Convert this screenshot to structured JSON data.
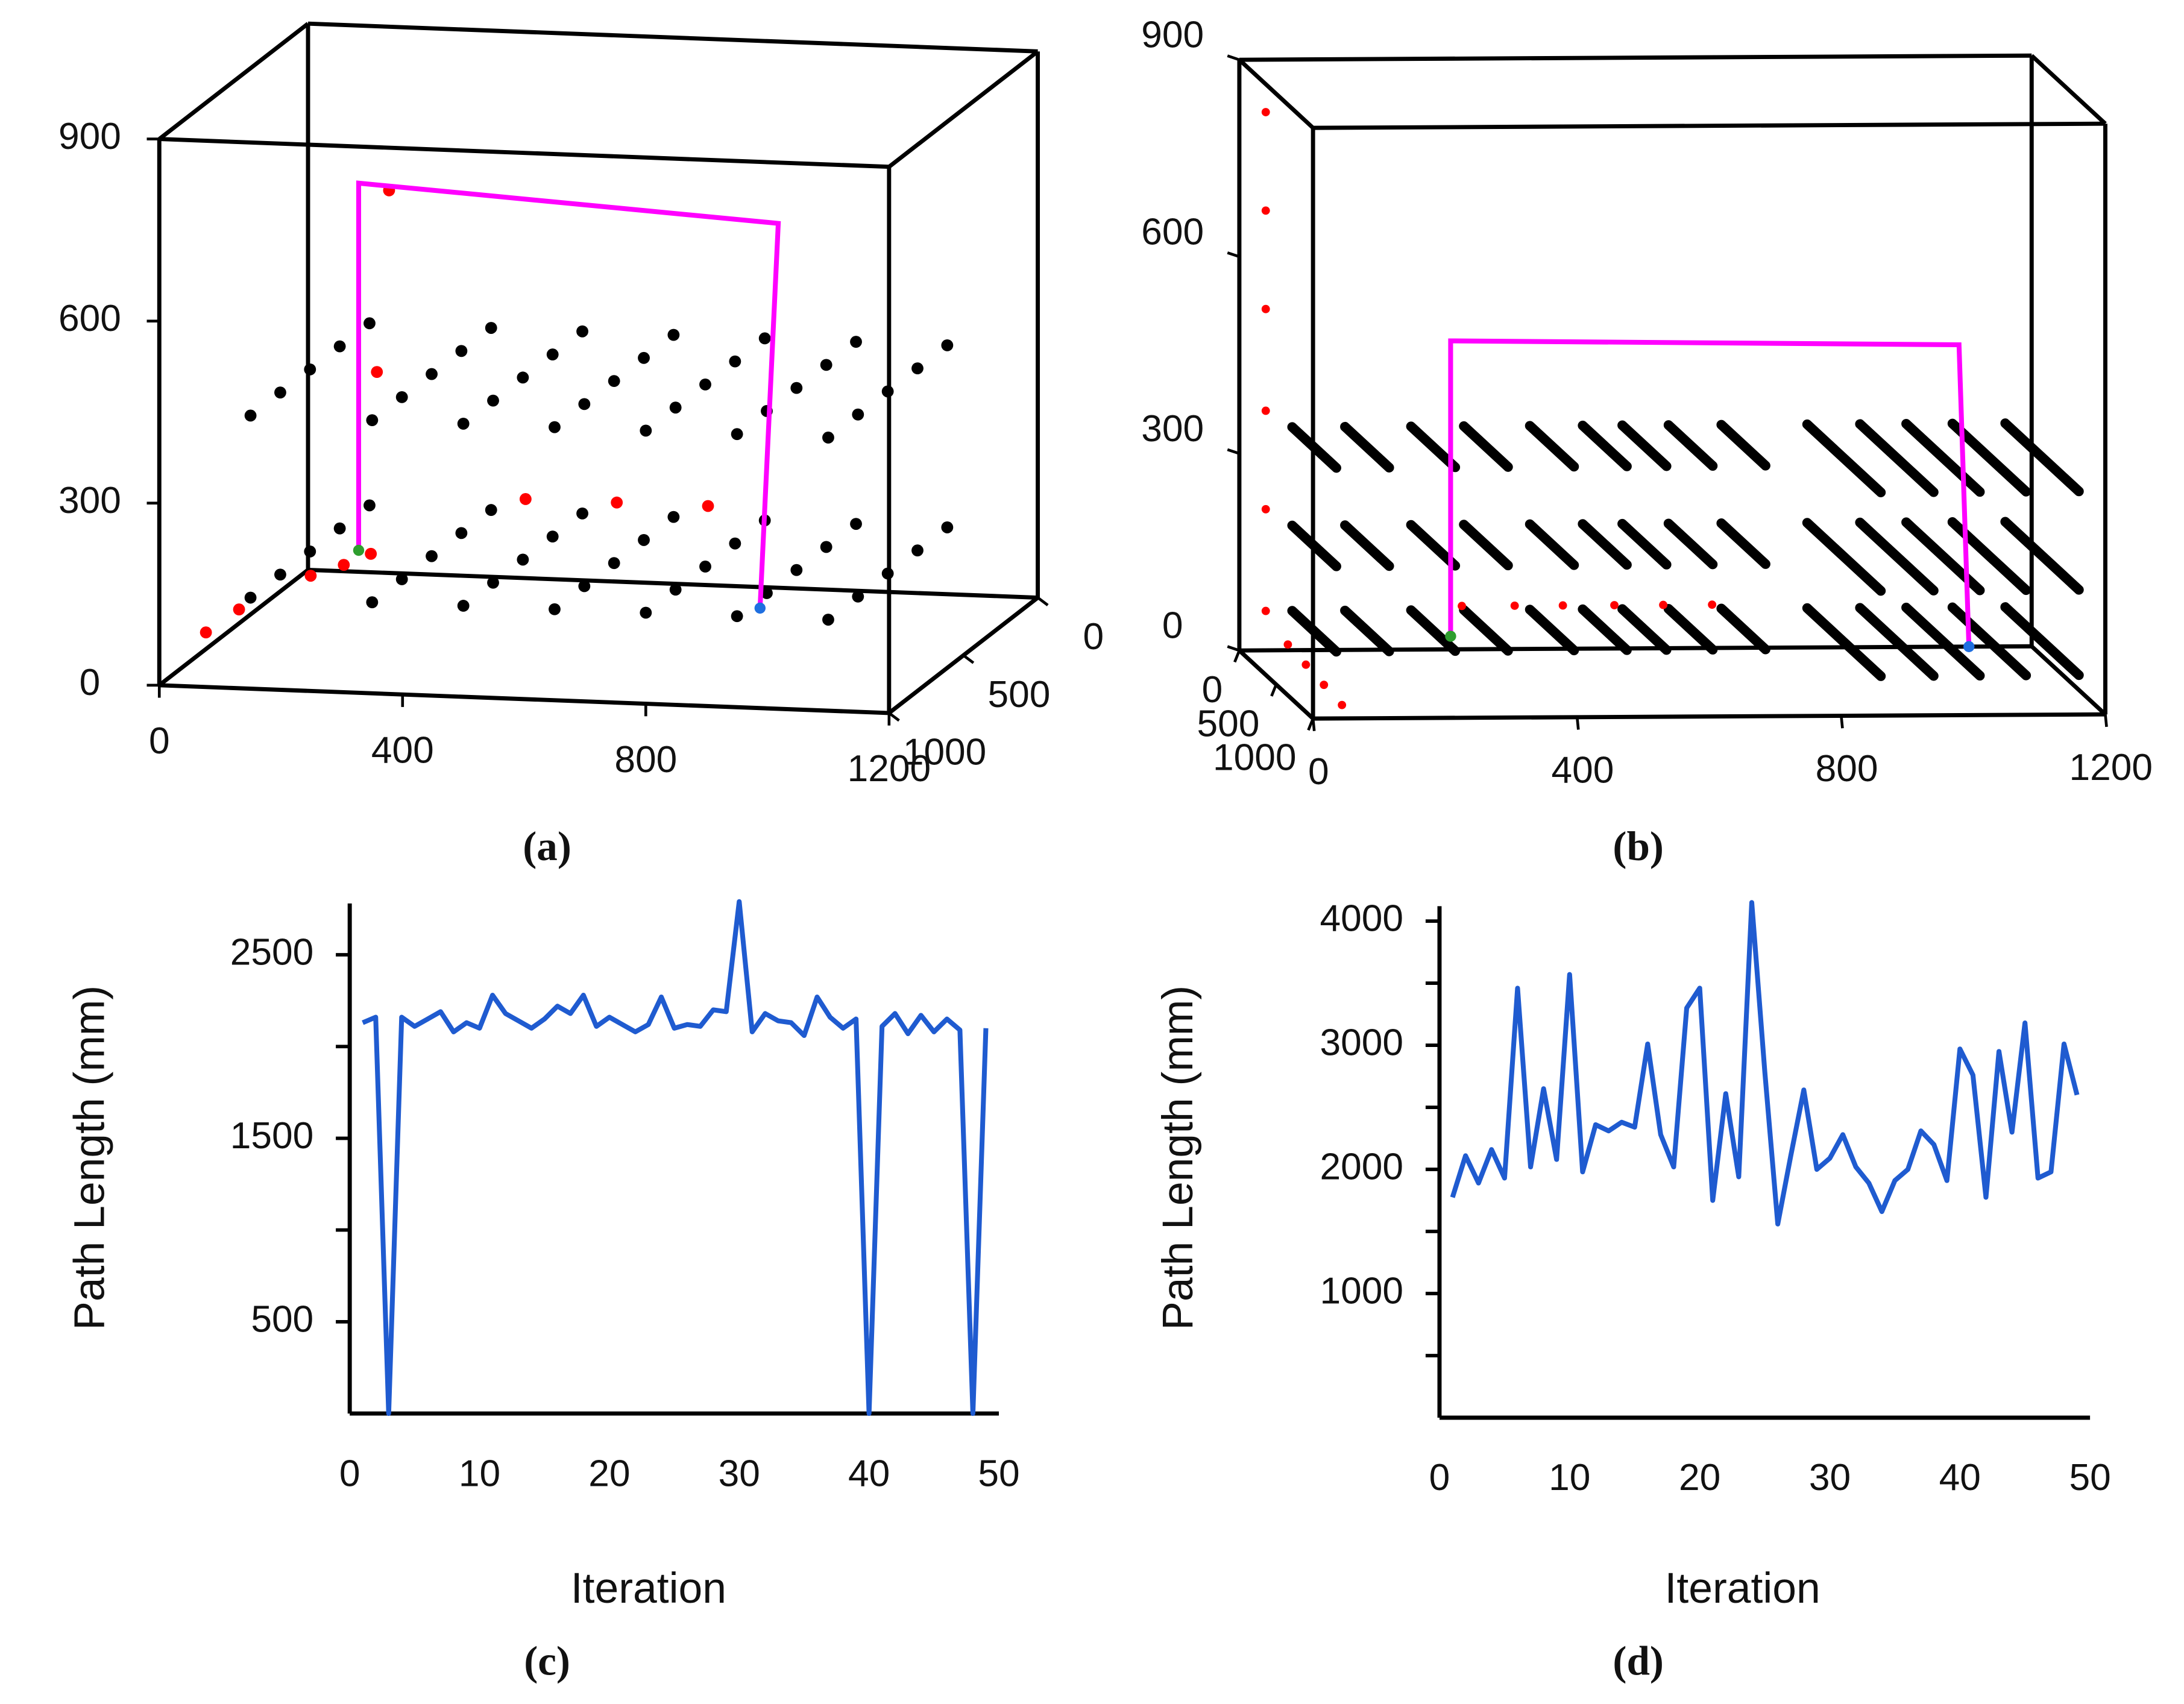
{
  "chart_data": [
    {
      "type": "scatter3d",
      "label": "(a)",
      "xlim": [
        0,
        1200
      ],
      "ylim": [
        0,
        1000
      ],
      "zlim": [
        0,
        900
      ],
      "xticks": [
        0,
        400,
        800,
        1200
      ],
      "yticks": [
        0,
        500,
        1000
      ],
      "zticks": [
        0,
        300,
        600,
        900
      ],
      "obstacles": {
        "color": "#000000",
        "x": [
          150,
          150,
          150,
          150,
          150,
          350,
          350,
          350,
          350,
          350,
          500,
          500,
          500,
          500,
          500,
          650,
          650,
          650,
          650,
          650,
          800,
          800,
          800,
          800,
          800,
          950,
          950,
          950,
          950,
          950,
          1100,
          1100,
          1100,
          1100,
          1100,
          150,
          150,
          150,
          150,
          150,
          350,
          350,
          350,
          350,
          350,
          500,
          500,
          500,
          500,
          500,
          650,
          650,
          650,
          650,
          650,
          800,
          800,
          800,
          800,
          800,
          950,
          950,
          950,
          950,
          950,
          1100,
          1100,
          1100,
          1100,
          1100
        ],
        "y": [
          200,
          400,
          600,
          800,
          1000,
          200,
          400,
          600,
          800,
          1000,
          200,
          400,
          600,
          800,
          1000,
          200,
          400,
          600,
          800,
          1000,
          200,
          400,
          600,
          800,
          1000,
          200,
          400,
          600,
          800,
          1000,
          200,
          400,
          600,
          800,
          1000,
          200,
          400,
          600,
          800,
          1000,
          200,
          400,
          600,
          800,
          1000,
          200,
          400,
          600,
          800,
          1000,
          200,
          400,
          600,
          800,
          1000,
          200,
          400,
          600,
          800,
          1000,
          200,
          400,
          600,
          800,
          1000,
          200,
          400,
          600,
          800,
          1000
        ],
        "z": [
          150,
          150,
          150,
          150,
          150,
          150,
          150,
          150,
          150,
          150,
          150,
          150,
          150,
          150,
          150,
          150,
          150,
          150,
          150,
          150,
          150,
          150,
          150,
          150,
          150,
          150,
          150,
          150,
          150,
          150,
          150,
          150,
          150,
          150,
          150,
          450,
          450,
          450,
          450,
          450,
          450,
          450,
          450,
          450,
          450,
          450,
          450,
          450,
          450,
          450,
          450,
          450,
          450,
          450,
          450,
          450,
          450,
          450,
          450,
          450,
          450,
          450,
          450,
          450,
          450,
          450,
          450,
          450,
          450,
          450
        ]
      },
      "targets": {
        "color": "#ff0000",
        "x": [
          40,
          70,
          200,
          230,
          250,
          260,
          280,
          480,
          630,
          780
        ],
        "y": [
          850,
          750,
          800,
          700,
          600,
          600,
          600,
          500,
          500,
          500
        ],
        "z": [
          60,
          80,
          150,
          150,
          150,
          450,
          750,
          230,
          230,
          230
        ]
      },
      "path": {
        "color": "#ff00ff",
        "x": [
          230,
          230,
          920,
          890
        ],
        "y": [
          600,
          600,
          600,
          600
        ],
        "z": [
          155,
          760,
          720,
          85
        ]
      },
      "start": {
        "color": "#2e9e2e",
        "x": 230,
        "y": 600,
        "z": 155
      },
      "end": {
        "color": "#1f6fe0",
        "x": 890,
        "y": 600,
        "z": 85
      }
    },
    {
      "type": "scatter3d",
      "label": "(b)",
      "xlim": [
        0,
        1200
      ],
      "ylim": [
        0,
        1000
      ],
      "zlim": [
        0,
        900
      ],
      "xticks": [
        0,
        400,
        800,
        1200
      ],
      "yticks": [
        0,
        500,
        1000
      ],
      "zticks": [
        0,
        300,
        600,
        900
      ],
      "obstacles": {
        "color": "#000000",
        "x": [
          80,
          160,
          260,
          340,
          440,
          520,
          580,
          650,
          730,
          860,
          940,
          1010,
          1080,
          1160,
          80,
          160,
          260,
          340,
          440,
          520,
          580,
          650,
          730,
          860,
          940,
          1010,
          1080,
          1160,
          80,
          160,
          260,
          340,
          440,
          520,
          580,
          650,
          730,
          860,
          940,
          1010,
          1080,
          1160
        ],
        "y0": [
          0,
          0,
          0,
          0,
          0,
          0,
          0,
          0,
          0,
          0,
          0,
          0,
          0,
          0,
          0,
          0,
          0,
          0,
          0,
          0,
          0,
          0,
          0,
          0,
          0,
          0,
          0,
          0,
          0,
          0,
          0,
          0,
          0,
          0,
          0,
          0,
          0,
          0,
          0,
          0,
          0,
          0
        ],
        "y1": [
          600,
          600,
          600,
          600,
          600,
          600,
          600,
          600,
          600,
          1000,
          1000,
          1000,
          1000,
          1000,
          600,
          600,
          600,
          600,
          600,
          600,
          600,
          600,
          600,
          1000,
          1000,
          1000,
          1000,
          1000,
          600,
          600,
          600,
          600,
          600,
          600,
          600,
          600,
          600,
          1000,
          1000,
          1000,
          1000,
          1000
        ],
        "z": [
          60,
          60,
          60,
          60,
          60,
          60,
          60,
          60,
          60,
          60,
          60,
          60,
          60,
          60,
          190,
          190,
          190,
          190,
          190,
          190,
          190,
          190,
          190,
          190,
          190,
          190,
          190,
          190,
          340,
          340,
          340,
          340,
          340,
          340,
          340,
          340,
          340,
          340,
          340,
          340,
          340,
          340
        ]
      },
      "targets": {
        "color": "#ff0000",
        "x": [
          40,
          40,
          40,
          40,
          40,
          40,
          337,
          417,
          490,
          568,
          642,
          716,
          40,
          45,
          50,
          55
        ],
        "y": [
          0,
          0,
          0,
          0,
          0,
          0,
          0,
          0,
          0,
          0,
          0,
          0,
          300,
          500,
          700,
          900
        ],
        "z": [
          820,
          670,
          520,
          365,
          215,
          60,
          66,
          66,
          66,
          66,
          66,
          66,
          40,
          30,
          20,
          10
        ]
      },
      "path": {
        "color": "#ff00ff",
        "x": [
          320,
          320,
          1090,
          1105
        ],
        "y": [
          0,
          0,
          0,
          0
        ],
        "z": [
          20,
          470,
          460,
          0
        ]
      },
      "start": {
        "color": "#2e9e2e",
        "x": 320,
        "y": 0,
        "z": 20
      },
      "end": {
        "color": "#1f6fe0",
        "x": 1105,
        "y": 0,
        "z": 0
      }
    },
    {
      "type": "line",
      "label": "(c)",
      "x_label": "Iteration",
      "y_label": "Path Length (mm)",
      "xlim": [
        0,
        50
      ],
      "ylim": [
        0,
        2780
      ],
      "xticks": [
        0,
        10,
        20,
        30,
        40,
        50
      ],
      "yticks": [
        500,
        1500,
        2500
      ],
      "yticks_minor": [
        1000,
        2000
      ],
      "color": "#1f5bd0",
      "x": [
        1,
        2,
        3,
        4,
        5,
        6,
        7,
        8,
        9,
        10,
        11,
        12,
        13,
        14,
        15,
        16,
        17,
        18,
        19,
        20,
        21,
        22,
        23,
        24,
        25,
        26,
        27,
        28,
        29,
        30,
        31,
        32,
        33,
        34,
        35,
        36,
        37,
        38,
        39,
        40,
        41,
        42,
        43,
        44,
        45,
        46,
        47,
        48,
        49
      ],
      "values": [
        2130,
        2160,
        0,
        2160,
        2110,
        2150,
        2190,
        2080,
        2130,
        2100,
        2280,
        2180,
        2140,
        2100,
        2150,
        2220,
        2180,
        2280,
        2110,
        2160,
        2120,
        2080,
        2120,
        2270,
        2100,
        2120,
        2110,
        2200,
        2190,
        2790,
        2080,
        2180,
        2140,
        2130,
        2060,
        2270,
        2160,
        2100,
        2150,
        0,
        2110,
        2180,
        2070,
        2170,
        2080,
        2150,
        2090,
        0,
        2100
      ]
    },
    {
      "type": "line",
      "label": "(d)",
      "x_label": "Iteration",
      "y_label": "Path Length (mm)",
      "xlim": [
        0,
        50
      ],
      "ylim": [
        0,
        4120
      ],
      "xticks": [
        0,
        10,
        20,
        30,
        40,
        50
      ],
      "yticks": [
        1000,
        2000,
        3000,
        4000
      ],
      "yticks_minor": [
        500,
        1500,
        2500,
        3500
      ],
      "color": "#1f5bd0",
      "x": [
        1,
        2,
        3,
        4,
        5,
        6,
        7,
        8,
        9,
        10,
        11,
        12,
        13,
        14,
        15,
        16,
        17,
        18,
        19,
        20,
        21,
        22,
        23,
        24,
        25,
        26,
        27,
        28,
        29,
        30,
        31,
        32,
        33,
        34,
        35,
        36,
        37,
        38,
        39,
        40,
        41,
        42,
        43,
        44,
        45,
        46,
        47,
        48,
        49
      ],
      "values": [
        1775,
        2110,
        1890,
        2160,
        1930,
        3460,
        2020,
        2650,
        2080,
        3570,
        1980,
        2360,
        2310,
        2380,
        2340,
        3010,
        2280,
        2020,
        3300,
        3460,
        1750,
        2610,
        1940,
        4150,
        2790,
        1560,
        2110,
        2640,
        2000,
        2090,
        2280,
        2020,
        1890,
        1660,
        1910,
        2000,
        2310,
        2200,
        1910,
        2970,
        2760,
        1775,
        2950,
        2300,
        3180,
        1930,
        1980,
        3010,
        2600
      ]
    }
  ]
}
